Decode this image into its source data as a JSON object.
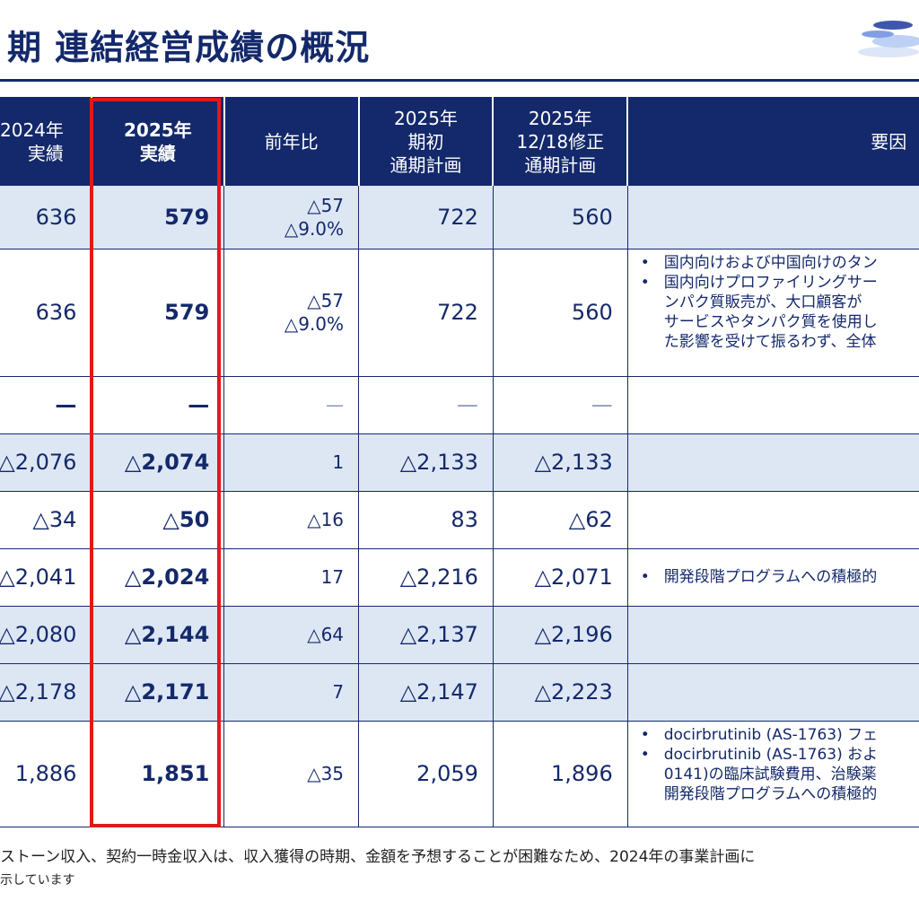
{
  "title": "期 連結経営成績の概況",
  "table": {
    "headers": [
      [
        "2024年",
        "実績"
      ],
      [
        "2025年",
        "実績"
      ],
      [
        "前年比"
      ],
      [
        "2025年",
        "期初",
        "通期計画"
      ],
      [
        "2025年",
        "12/18修正",
        "通期計画"
      ],
      [
        "要因"
      ]
    ],
    "rows": [
      {
        "v": [
          "636",
          "579",
          "△57",
          "△9.0%",
          "722",
          "560"
        ],
        "reasons": []
      },
      {
        "v": [
          "636",
          "579",
          "△57",
          "△9.0%",
          "722",
          "560"
        ],
        "reasons": [
          [
            "国内向けおよび中国向けのタン"
          ],
          [
            "国内向けプロファイリングサー",
            "ンパク質販売が、大口顧客が",
            "サービスやタンパク質を使用し",
            "た影響を受けて振るわず、全体"
          ]
        ]
      },
      {
        "v": [
          "—",
          "—",
          "—",
          "",
          "—",
          "—"
        ],
        "reasons": []
      },
      {
        "v": [
          "△2,076",
          "△2,074",
          "1",
          "",
          "△2,133",
          "△2,133"
        ],
        "reasons": []
      },
      {
        "v": [
          "△34",
          "△50",
          "△16",
          "",
          "83",
          "△62"
        ],
        "reasons": []
      },
      {
        "v": [
          "△2,041",
          "△2,024",
          "17",
          "",
          "△2,216",
          "△2,071"
        ],
        "reasons": [
          [
            "開発段階プログラムへの積極的"
          ]
        ]
      },
      {
        "v": [
          "△2,080",
          "△2,144",
          "△64",
          "",
          "△2,137",
          "△2,196"
        ],
        "reasons": []
      },
      {
        "v": [
          "△2,178",
          "△2,171",
          "7",
          "",
          "△2,147",
          "△2,223"
        ],
        "reasons": []
      },
      {
        "v": [
          "1,886",
          "1,851",
          "△35",
          "",
          "2,059",
          "1,896"
        ],
        "reasons": [
          [
            "docirbrutinib (AS-1763) フェ"
          ],
          [
            "docirbrutinib (AS-1763) およ",
            "0141)の臨床試験費用、治験薬",
            "開発段階プログラムへの積極的"
          ]
        ]
      }
    ]
  },
  "footnote": "ストーン収入、契約一時金収入は、収入獲得の時期、金額を予想することが困難なため、2024年の事業計画に",
  "footnote2": "示しています",
  "colors": {
    "navy": "#14296b",
    "shade": "#dde7f4",
    "highlight": "#e01a1a"
  }
}
